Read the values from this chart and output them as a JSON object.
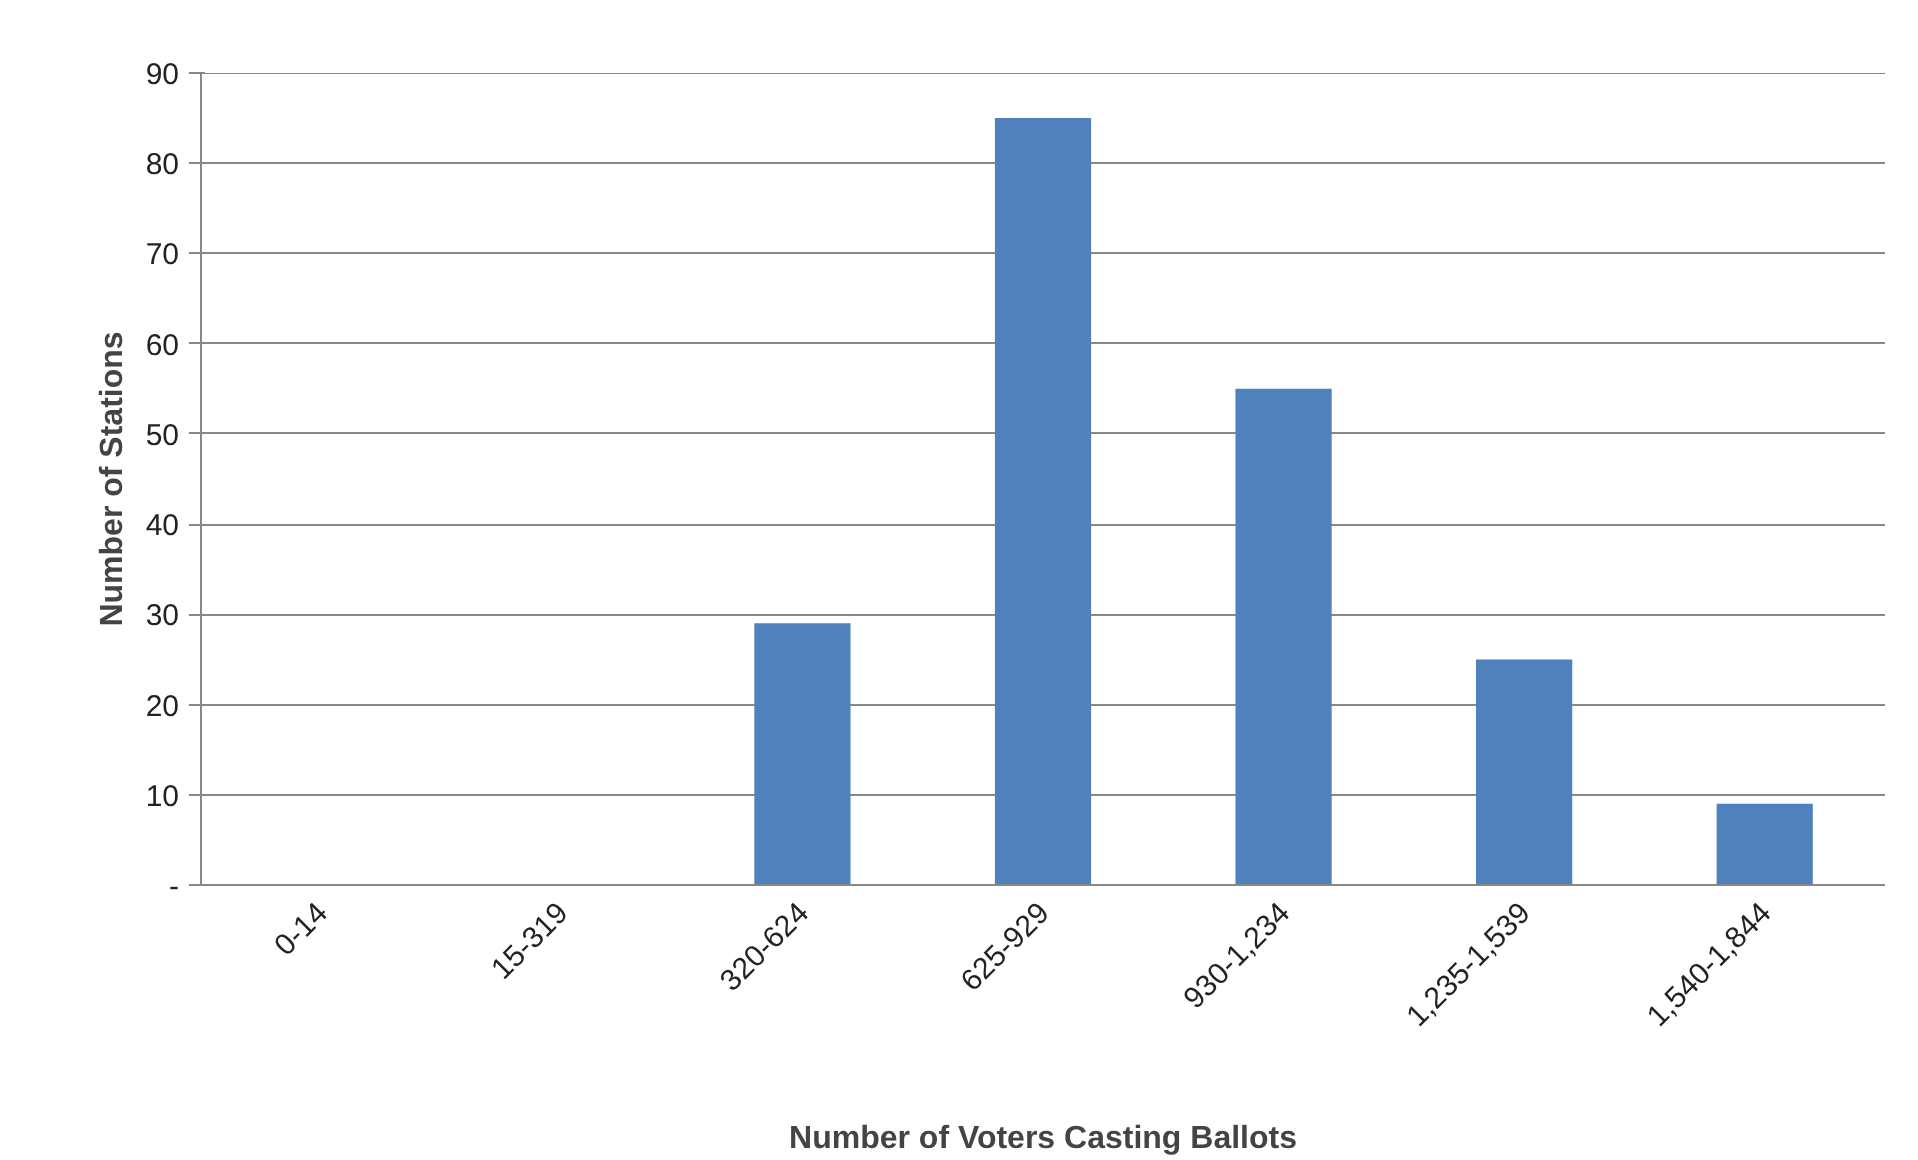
{
  "chart_data": {
    "type": "bar",
    "xlabel": "Number of Voters Casting Ballots",
    "ylabel": "Number of Stations",
    "categories": [
      "0-14",
      "15-319",
      "320-624",
      "625-929",
      "930-1,234",
      "1,235-1,539",
      "1,540-1,844"
    ],
    "values": [
      0,
      0,
      29,
      85,
      55,
      25,
      9
    ],
    "color": "#4f81bd",
    "ylim": [
      0,
      90
    ],
    "yticks": [
      {
        "value": 0,
        "label": "-"
      },
      10,
      20,
      30,
      40,
      50,
      60,
      70,
      80,
      90
    ],
    "grid": "y"
  }
}
